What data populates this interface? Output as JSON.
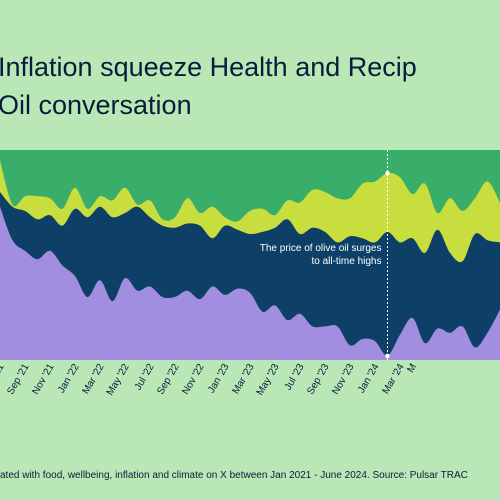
{
  "title_line1": "Inflation squeeze Health and Recip",
  "title_line2": "Oil conversation",
  "footer": "ated with food, wellbeing, inflation and climate on X between Jan 2021 - June 2024. Source: Pulsar TRAC",
  "colors": {
    "background": "#b9e8b6",
    "top": "#39ad6a",
    "lime": "#c8dd3e",
    "navy": "#0e4067",
    "purple": "#a18ee0"
  },
  "chart_data": {
    "type": "area",
    "stacking": "percent",
    "annotation": {
      "text_line1": "The price of olive oil surges",
      "text_line2": "to all-time highs",
      "x_index": 31
    },
    "x_tick_labels": [
      "'21",
      "Sep '21",
      "Nov '21",
      "Jan '22",
      "Mar '22",
      "May '22",
      "Jul '22",
      "Sep '22",
      "Nov '22",
      "Jan '23",
      "Mar '23",
      "May '23",
      "Jul '23",
      "Sep '23",
      "Nov '23",
      "Jan '24",
      "Mar '24",
      "M"
    ],
    "x_tick_index": [
      0,
      2,
      4,
      6,
      8,
      10,
      12,
      14,
      16,
      18,
      20,
      22,
      24,
      26,
      28,
      30,
      32,
      33
    ],
    "cumulative_bounds": {
      "purple": [
        73,
        57,
        52,
        48,
        52,
        45,
        40,
        30,
        38,
        28,
        39,
        33,
        35,
        30,
        30,
        33,
        29,
        35,
        31,
        34,
        32,
        23,
        26,
        19,
        22,
        16,
        16,
        16,
        7,
        10,
        9,
        2,
        12,
        20,
        8,
        15,
        13,
        16,
        6,
        13,
        24
      ],
      "navy": [
        80,
        73,
        71,
        67,
        69,
        64,
        72,
        68,
        73,
        68,
        70,
        73,
        68,
        64,
        63,
        65,
        64,
        58,
        64,
        62,
        60,
        61,
        63,
        67,
        60,
        63,
        61,
        56,
        59,
        58,
        56,
        61,
        56,
        58,
        51,
        62,
        51,
        47,
        60,
        57,
        56
      ],
      "lime": [
        95,
        74,
        78,
        78,
        77,
        72,
        82,
        72,
        78,
        76,
        82,
        74,
        76,
        67,
        68,
        77,
        70,
        73,
        68,
        66,
        71,
        72,
        69,
        76,
        75,
        81,
        80,
        77,
        77,
        84,
        85,
        89,
        87,
        79,
        84,
        70,
        77,
        71,
        77,
        85,
        75
      ]
    }
  }
}
